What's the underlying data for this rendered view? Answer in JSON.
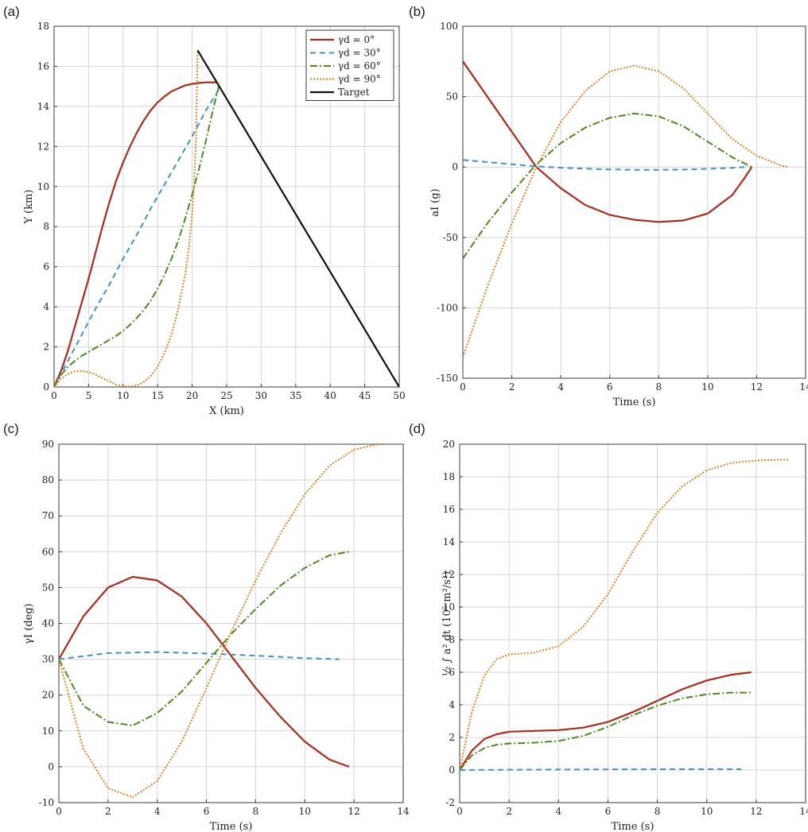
{
  "series_styles": [
    {
      "legend": "γd = 0°",
      "color": "#b0281a",
      "dash": "",
      "width": 2.2
    },
    {
      "legend": "γd = 30°",
      "color": "#3d94c6",
      "dash": "7,5",
      "width": 2.0
    },
    {
      "legend": "γd = 60°",
      "color": "#4d8a1d",
      "dash": "9,3,2,3",
      "width": 2.0
    },
    {
      "legend": "γd = 90°",
      "color": "#e0821e",
      "dash": "2,2",
      "width": 2.0
    },
    {
      "legend": "Target",
      "color": "#111111",
      "dash": "",
      "width": 2.2
    }
  ],
  "chart_data": [
    {
      "panel": "(a)",
      "type": "line",
      "xlabel": "X (km)",
      "ylabel": "Y (km)",
      "xlim": [
        0,
        50
      ],
      "ylim": [
        0,
        18
      ],
      "xticks": [
        0,
        5,
        10,
        15,
        20,
        25,
        30,
        35,
        40,
        45,
        50
      ],
      "yticks": [
        0,
        2,
        4,
        6,
        8,
        10,
        12,
        14,
        16,
        18
      ],
      "grid": true,
      "legend": "top-right",
      "series": [
        {
          "name": "γd = 0°",
          "x": [
            0,
            1,
            2,
            3,
            4,
            5,
            6,
            7,
            8,
            9,
            10,
            11,
            12,
            13,
            14,
            15,
            16,
            17,
            18,
            19,
            20,
            21,
            22,
            23,
            23.5
          ],
          "y": [
            0,
            0.8,
            1.8,
            3.0,
            4.2,
            5.4,
            6.7,
            8.0,
            9.2,
            10.3,
            11.2,
            12.0,
            12.7,
            13.3,
            13.8,
            14.2,
            14.5,
            14.75,
            14.9,
            15.05,
            15.12,
            15.17,
            15.2,
            15.2,
            15.2
          ]
        },
        {
          "name": "γd = 30°",
          "x": [
            0,
            2,
            4,
            6,
            8,
            10,
            12,
            14,
            16,
            18,
            20,
            22,
            24
          ],
          "y": [
            0,
            1.3,
            2.6,
            3.9,
            5.1,
            6.4,
            7.6,
            8.9,
            10.1,
            11.3,
            12.5,
            13.8,
            14.9
          ]
        },
        {
          "name": "γd = 60°",
          "x": [
            0,
            1,
            2,
            3,
            4,
            5,
            6,
            7,
            8,
            9,
            10,
            11,
            12,
            13,
            14,
            15,
            16,
            17,
            18,
            19,
            20,
            21,
            22,
            23,
            24
          ],
          "y": [
            0,
            0.6,
            1.0,
            1.3,
            1.55,
            1.75,
            1.95,
            2.15,
            2.35,
            2.55,
            2.8,
            3.1,
            3.45,
            3.85,
            4.3,
            4.9,
            5.6,
            6.4,
            7.3,
            8.4,
            9.6,
            10.9,
            12.3,
            13.8,
            15.2
          ]
        },
        {
          "name": "γd = 90°",
          "x": [
            0,
            1,
            2,
            3,
            4,
            5,
            6,
            7,
            8,
            9,
            10,
            11,
            12,
            13,
            14,
            15,
            16,
            17,
            18,
            19,
            19.5,
            20,
            20.3,
            20.6,
            20.8
          ],
          "y": [
            0,
            0.4,
            0.65,
            0.78,
            0.8,
            0.74,
            0.62,
            0.45,
            0.28,
            0.12,
            0.04,
            0.02,
            0.08,
            0.25,
            0.55,
            1.0,
            1.7,
            2.6,
            3.9,
            5.6,
            6.9,
            8.6,
            10.3,
            12.8,
            16.8
          ]
        },
        {
          "name": "Target",
          "x": [
            20.8,
            50
          ],
          "y": [
            16.8,
            0
          ]
        }
      ]
    },
    {
      "panel": "(b)",
      "type": "line",
      "xlabel": "Time (s)",
      "ylabel": "aI (g)",
      "xlim": [
        0,
        14
      ],
      "ylim": [
        -150,
        100
      ],
      "xticks": [
        0,
        2,
        4,
        6,
        8,
        10,
        12,
        14
      ],
      "yticks": [
        -150,
        -100,
        -50,
        0,
        50,
        100
      ],
      "grid": true,
      "series": [
        {
          "name": "γd = 0°",
          "x": [
            0,
            1,
            2,
            3,
            4,
            5,
            6,
            7,
            8,
            9,
            10,
            11,
            11.5,
            11.8
          ],
          "y": [
            75,
            50,
            25,
            0,
            -15,
            -27,
            -34,
            -37.5,
            -39,
            -38,
            -33,
            -20,
            -8,
            0
          ]
        },
        {
          "name": "γd = 30°",
          "x": [
            0,
            1,
            2,
            3,
            4,
            5,
            6,
            7,
            8,
            9,
            10,
            11,
            11.5
          ],
          "y": [
            5,
            3.5,
            2,
            0.5,
            -0.5,
            -1.2,
            -1.7,
            -2,
            -2,
            -1.8,
            -1.3,
            -0.6,
            0
          ]
        },
        {
          "name": "γd = 60°",
          "x": [
            0,
            1,
            2,
            3,
            4,
            5,
            6,
            7,
            8,
            9,
            10,
            11,
            11.8
          ],
          "y": [
            -65,
            -40,
            -18,
            2,
            17,
            28,
            35,
            38,
            36,
            29,
            18,
            7,
            0
          ]
        },
        {
          "name": "γd = 90°",
          "x": [
            0,
            1,
            2,
            3,
            4,
            5,
            6,
            7,
            8,
            9,
            10,
            11,
            12,
            13,
            13.3
          ],
          "y": [
            -135,
            -85,
            -40,
            0,
            32,
            54,
            68,
            72,
            68,
            56,
            38,
            20,
            8,
            1,
            0
          ]
        }
      ]
    },
    {
      "panel": "(c)",
      "type": "line",
      "xlabel": "Time (s)",
      "ylabel": "γI (deg)",
      "xlim": [
        0,
        14
      ],
      "ylim": [
        -10,
        90
      ],
      "xticks": [
        0,
        2,
        4,
        6,
        8,
        10,
        12,
        14
      ],
      "yticks": [
        -10,
        0,
        10,
        20,
        30,
        40,
        50,
        60,
        70,
        80,
        90
      ],
      "grid": true,
      "series": [
        {
          "name": "γd = 0°",
          "x": [
            0,
            1,
            2,
            3,
            4,
            5,
            6,
            7,
            8,
            9,
            10,
            11,
            11.8
          ],
          "y": [
            30,
            42,
            50,
            53,
            52,
            47.5,
            40,
            31,
            22,
            14,
            7,
            2,
            0
          ]
        },
        {
          "name": "γd = 30°",
          "x": [
            0,
            2,
            4,
            6,
            8,
            10,
            11.4
          ],
          "y": [
            30,
            31.7,
            32,
            31.6,
            31,
            30.3,
            30
          ]
        },
        {
          "name": "γd = 60°",
          "x": [
            0,
            1,
            2,
            3,
            4,
            5,
            6,
            7,
            8,
            9,
            10,
            11,
            11.8
          ],
          "y": [
            30,
            17,
            12.5,
            11.5,
            15,
            21,
            29,
            37,
            44,
            50.5,
            55.5,
            59,
            60
          ]
        },
        {
          "name": "γd = 90°",
          "x": [
            0,
            1,
            2,
            3,
            4,
            5,
            6,
            7,
            8,
            9,
            10,
            11,
            12,
            13,
            13.3
          ],
          "y": [
            30,
            5,
            -6,
            -8.5,
            -4,
            7,
            22,
            37.5,
            52,
            65,
            76,
            84,
            88.5,
            90,
            90
          ]
        }
      ]
    },
    {
      "panel": "(d)",
      "type": "line",
      "xlabel": "Time (s)",
      "ylabel": "½ ∫ a² dt   (10⁵ m²/s³)",
      "xlim": [
        0,
        14
      ],
      "ylim": [
        -2,
        20
      ],
      "xticks": [
        0,
        2,
        4,
        6,
        8,
        10,
        12,
        14
      ],
      "yticks": [
        -2,
        0,
        2,
        4,
        6,
        8,
        10,
        12,
        14,
        16,
        18,
        20
      ],
      "grid": true,
      "series": [
        {
          "name": "γd = 0°",
          "x": [
            0,
            0.5,
            1,
            1.5,
            2,
            3,
            4,
            5,
            6,
            7,
            8,
            9,
            10,
            11,
            11.8
          ],
          "y": [
            0,
            1.2,
            1.9,
            2.2,
            2.35,
            2.4,
            2.45,
            2.6,
            2.95,
            3.55,
            4.25,
            4.95,
            5.5,
            5.85,
            6
          ]
        },
        {
          "name": "γd = 30°",
          "x": [
            0,
            2,
            4,
            6,
            8,
            10,
            11.4
          ],
          "y": [
            0,
            0.02,
            0.03,
            0.04,
            0.05,
            0.05,
            0.05
          ]
        },
        {
          "name": "γd = 60°",
          "x": [
            0,
            0.5,
            1,
            1.5,
            2,
            3,
            4,
            5,
            6,
            7,
            8,
            9,
            10,
            11,
            11.8
          ],
          "y": [
            0,
            0.9,
            1.35,
            1.55,
            1.63,
            1.68,
            1.78,
            2.1,
            2.65,
            3.35,
            3.95,
            4.4,
            4.65,
            4.75,
            4.75
          ]
        },
        {
          "name": "γd = 90°",
          "x": [
            0,
            0.5,
            1,
            1.5,
            2,
            3,
            4,
            5,
            6,
            7,
            8,
            9,
            10,
            11,
            12,
            13,
            13.3
          ],
          "y": [
            0,
            3.6,
            5.8,
            6.8,
            7.1,
            7.2,
            7.6,
            8.8,
            10.8,
            13.4,
            15.8,
            17.4,
            18.4,
            18.85,
            19.0,
            19.05,
            19.05
          ]
        }
      ]
    }
  ]
}
